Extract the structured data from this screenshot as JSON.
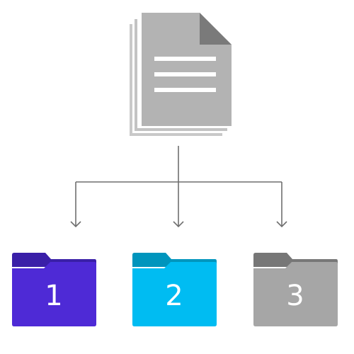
{
  "source_document": {
    "icon": "document-stack-icon",
    "colors": {
      "page": "#b3b3b3",
      "back_pages": "#c7c7c7",
      "corner": "#7a7a7a",
      "lines": "#ffffff"
    }
  },
  "connector": {
    "color": "#6f6f6f"
  },
  "folders": [
    {
      "label": "1",
      "icon": "folder-icon",
      "color_body": "#4e2ad6",
      "color_tab": "#3a1fa8"
    },
    {
      "label": "2",
      "icon": "folder-icon",
      "color_body": "#00bcf2",
      "color_tab": "#0095bd"
    },
    {
      "label": "3",
      "icon": "folder-icon",
      "color_body": "#a6a6a6",
      "color_tab": "#777777"
    }
  ]
}
